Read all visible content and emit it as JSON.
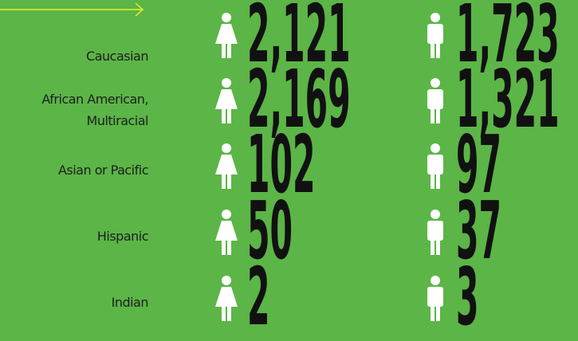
{
  "rows": [
    {
      "label": [
        "Caucasian"
      ],
      "female": "2,121",
      "male": "1,723"
    },
    {
      "label": [
        "African American,",
        "Multiracial"
      ],
      "female": "2,169",
      "male": "1,321"
    },
    {
      "label": [
        "Asian or Pacific"
      ],
      "female": "102",
      "male": "97"
    },
    {
      "label": [
        "Hispanic"
      ],
      "female": "50",
      "male": "37"
    },
    {
      "label": [
        "Indian"
      ],
      "female": "2",
      "male": "3"
    }
  ]
}
